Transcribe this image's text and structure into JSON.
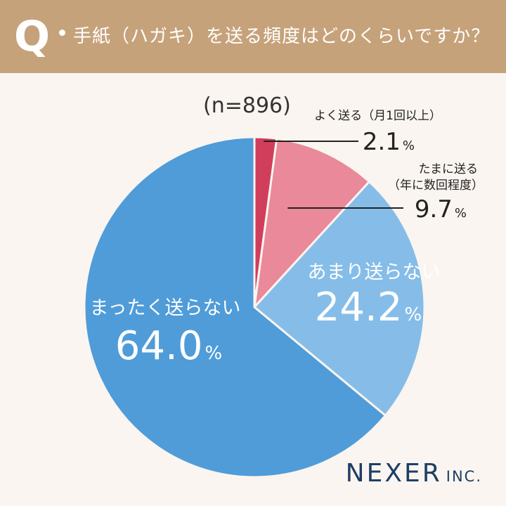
{
  "header": {
    "q_mark": "Q",
    "question": "手紙（ハガキ）を送る頻度はどのくらいですか？"
  },
  "sample_size": "(n=896)",
  "logo": {
    "main": "NEXER",
    "sub": "INC."
  },
  "colors": {
    "header_bg": "#c6a27a",
    "background": "#faf5f0",
    "often": "#d13e5c",
    "sometimes": "#e9899a",
    "rarely": "#85bde8",
    "never": "#4f9cd9"
  },
  "chart_data": {
    "type": "pie",
    "title": "手紙（ハガキ）を送る頻度はどのくらいですか？",
    "slices": [
      {
        "label": "よく送る（月1回以上）",
        "value": 2.1,
        "display": "2.1",
        "unit": "%",
        "color": "#d13e5c"
      },
      {
        "label": "たまに送る（年に数回程度）",
        "label_lines": [
          "たまに送る",
          "（年に数回程度）"
        ],
        "value": 9.7,
        "display": "9.7",
        "unit": "%",
        "color": "#e9899a"
      },
      {
        "label": "あまり送らない",
        "value": 24.2,
        "display": "24.2",
        "unit": "%",
        "color": "#85bde8"
      },
      {
        "label": "まったく送らない",
        "value": 64.0,
        "display": "64.0",
        "unit": "%",
        "color": "#4f9cd9"
      }
    ],
    "start_angle": "12 o'clock",
    "direction": "clockwise"
  }
}
